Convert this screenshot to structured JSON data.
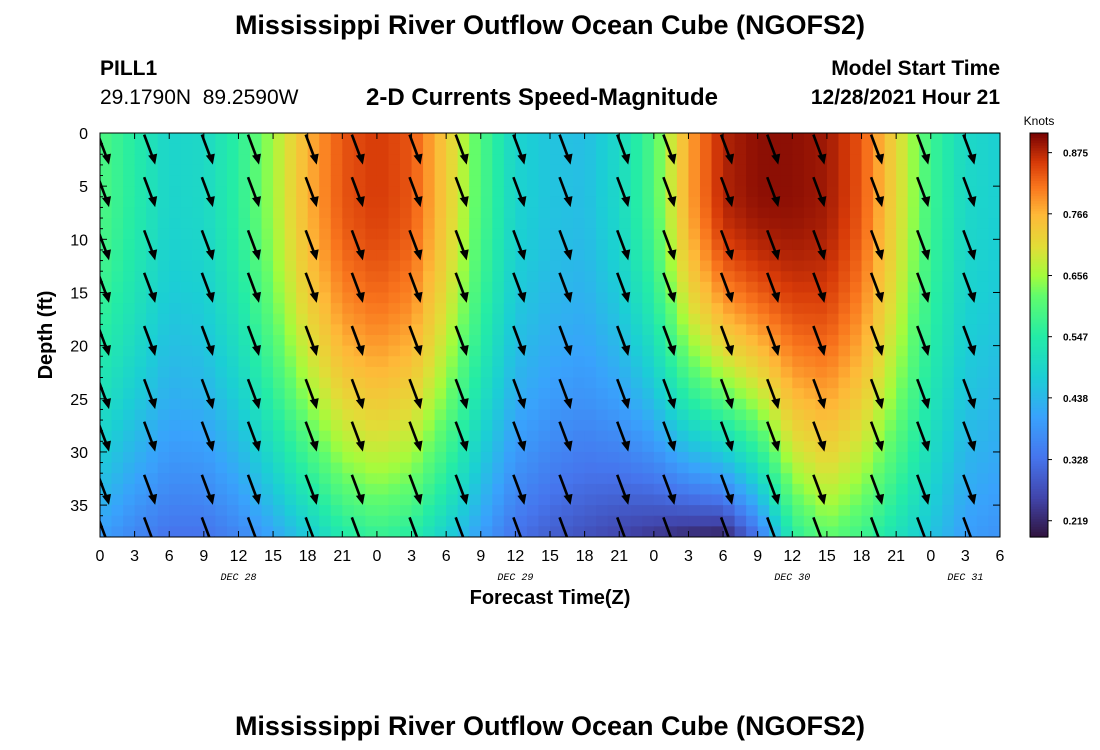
{
  "header": {
    "title": "Mississippi River Outflow Ocean Cube (NGOFS2)",
    "station": "PILL1",
    "coords": "29.1790N  89.2590W",
    "subtitle": "2-D Currents Speed-Magnitude",
    "model_label": "Model Start Time",
    "model_time": "12/28/2021 Hour 21"
  },
  "footer": {
    "title": "Mississippi River Outflow Ocean Cube (NGOFS2)"
  },
  "chart_data": {
    "type": "heatmap",
    "xlabel": "Forecast Time(Z)",
    "ylabel": "Depth (ft)",
    "x_ticks": [
      "0",
      "3",
      "6",
      "9",
      "12",
      "15",
      "18",
      "21",
      "0",
      "3",
      "6",
      "9",
      "12",
      "15",
      "18",
      "21",
      "0",
      "3",
      "6",
      "9",
      "12",
      "15",
      "18",
      "21",
      "0",
      "3",
      "6"
    ],
    "x_tick_hours": [
      0,
      3,
      6,
      9,
      12,
      15,
      18,
      21,
      24,
      27,
      30,
      33,
      36,
      39,
      42,
      45,
      48,
      51,
      54,
      57,
      60,
      63,
      66,
      69,
      72,
      75,
      78
    ],
    "x_range": [
      0,
      78
    ],
    "date_labels": [
      {
        "label": "DEC 28",
        "hour": 12
      },
      {
        "label": "DEC 29",
        "hour": 36
      },
      {
        "label": "DEC 30",
        "hour": 60
      },
      {
        "label": "DEC 31",
        "hour": 75
      }
    ],
    "y_ticks": [
      0,
      5,
      10,
      15,
      20,
      25,
      30,
      35
    ],
    "y_range": [
      0,
      38
    ],
    "colorbar": {
      "unit": "Knots",
      "ticks": [
        "0.219",
        "0.328",
        "0.438",
        "0.547",
        "0.656",
        "0.766",
        "0.875"
      ],
      "tick_values": [
        0.219,
        0.328,
        0.438,
        0.547,
        0.656,
        0.766,
        0.875
      ],
      "min": 0.19,
      "max": 0.91,
      "colormap": "turbo"
    },
    "speed_knots_by_hour": [
      {
        "hour": 0,
        "surface": 0.6,
        "bottom": 0.4
      },
      {
        "hour": 3,
        "surface": 0.55,
        "bottom": 0.36
      },
      {
        "hour": 6,
        "surface": 0.49,
        "bottom": 0.33
      },
      {
        "hour": 9,
        "surface": 0.5,
        "bottom": 0.33
      },
      {
        "hour": 12,
        "surface": 0.56,
        "bottom": 0.36
      },
      {
        "hour": 15,
        "surface": 0.66,
        "bottom": 0.41
      },
      {
        "hour": 18,
        "surface": 0.77,
        "bottom": 0.47
      },
      {
        "hour": 21,
        "surface": 0.84,
        "bottom": 0.54
      },
      {
        "hour": 24,
        "surface": 0.86,
        "bottom": 0.57
      },
      {
        "hour": 27,
        "surface": 0.84,
        "bottom": 0.55
      },
      {
        "hour": 30,
        "surface": 0.74,
        "bottom": 0.48
      },
      {
        "hour": 33,
        "surface": 0.6,
        "bottom": 0.4
      },
      {
        "hour": 36,
        "surface": 0.49,
        "bottom": 0.33
      },
      {
        "hour": 39,
        "surface": 0.46,
        "bottom": 0.3
      },
      {
        "hour": 42,
        "surface": 0.45,
        "bottom": 0.28
      },
      {
        "hour": 45,
        "surface": 0.5,
        "bottom": 0.26
      },
      {
        "hour": 48,
        "surface": 0.6,
        "bottom": 0.24
      },
      {
        "hour": 51,
        "surface": 0.78,
        "bottom": 0.22
      },
      {
        "hour": 54,
        "surface": 0.88,
        "bottom": 0.21
      },
      {
        "hour": 57,
        "surface": 0.9,
        "bottom": 0.33
      },
      {
        "hour": 60,
        "surface": 0.9,
        "bottom": 0.55
      },
      {
        "hour": 63,
        "surface": 0.89,
        "bottom": 0.62
      },
      {
        "hour": 66,
        "surface": 0.84,
        "bottom": 0.58
      },
      {
        "hour": 69,
        "surface": 0.72,
        "bottom": 0.52
      },
      {
        "hour": 72,
        "surface": 0.58,
        "bottom": 0.46
      },
      {
        "hour": 75,
        "surface": 0.5,
        "bottom": 0.4
      },
      {
        "hour": 78,
        "surface": 0.48,
        "bottom": 0.38
      }
    ],
    "vectors": {
      "direction": "south-southeast",
      "hours": [
        0,
        4,
        9,
        13,
        18,
        22,
        27,
        31,
        36,
        40,
        45,
        49,
        54,
        58,
        62,
        67,
        71,
        75
      ],
      "depths_ft": [
        1,
        5,
        10,
        14,
        19,
        24,
        28,
        33,
        37
      ]
    }
  }
}
